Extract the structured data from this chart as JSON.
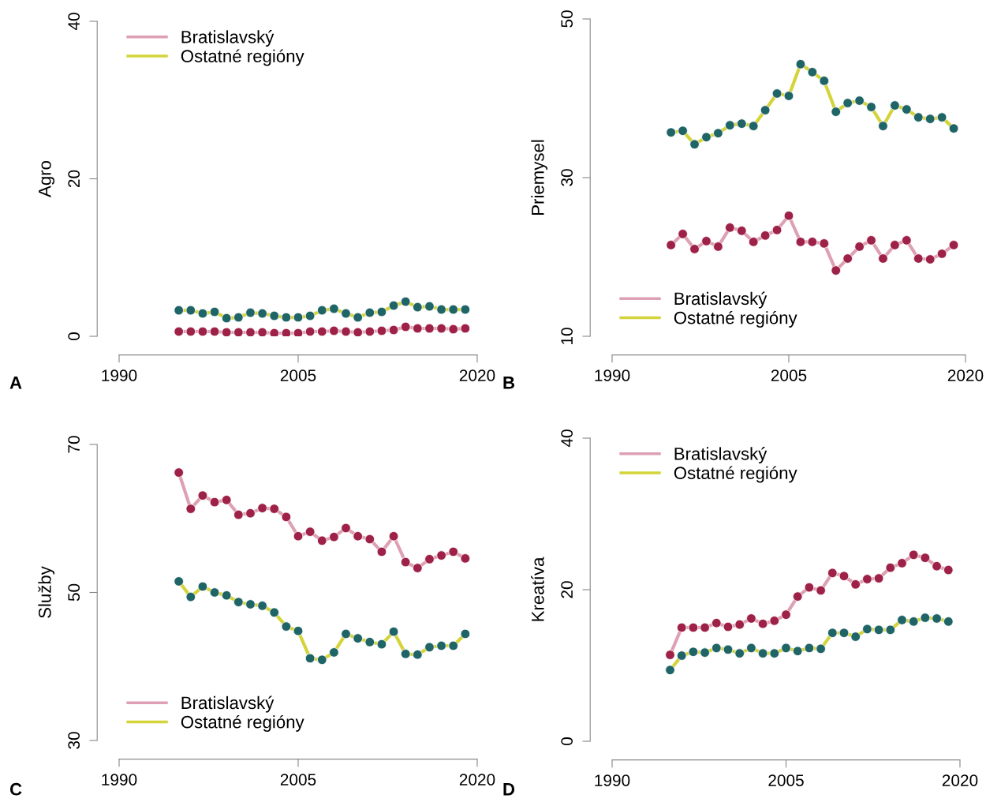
{
  "chart_data": [
    {
      "type": "line",
      "ylabel": "Agro",
      "annotations": [
        "A"
      ],
      "x": [
        1995,
        1996,
        1997,
        1998,
        1999,
        2000,
        2001,
        2002,
        2003,
        2004,
        2005,
        2006,
        2007,
        2008,
        2009,
        2010,
        2011,
        2012,
        2013,
        2014,
        2015,
        2016,
        2017,
        2018,
        2019
      ],
      "xlim": [
        1990,
        2020
      ],
      "xticks": [
        1990,
        2005,
        2020
      ],
      "ylim": [
        0,
        40
      ],
      "yticks": [
        0,
        20,
        40
      ],
      "legend": "top left",
      "marker": "circle",
      "grid": false,
      "series": [
        {
          "name": "Bratislavský",
          "color": "#dda0b4",
          "colors": [
            "#9e2148",
            "#9e2148",
            "#9e2148",
            "#9e2148",
            "#9e2148",
            "#9e2148",
            "#9e2148",
            "#9e2148",
            "#9e2148",
            "#9e2148",
            "#9e2148",
            "#9e2148",
            "#9e2148",
            "#9e2148",
            "#9e2148",
            "#9e2148",
            "#9e2148",
            "#9e2148",
            "#9e2148",
            "#9e2148",
            "#9e2148",
            "#9e2148",
            "#9e2148",
            "#9e2148",
            "#9e2148"
          ],
          "values": [
            0.6,
            0.6,
            0.6,
            0.6,
            0.5,
            0.5,
            0.5,
            0.5,
            0.4,
            0.4,
            0.4,
            0.6,
            0.6,
            0.7,
            0.6,
            0.5,
            0.6,
            0.7,
            0.8,
            1.2,
            1.0,
            1.0,
            1.0,
            0.9,
            1.0
          ]
        },
        {
          "name": "Ostatné regióny",
          "color": "#d4d43a",
          "colors": [
            "#1f6467",
            "#1f6467",
            "#1f6467",
            "#1f6467",
            "#1f6467",
            "#1f6467",
            "#1f6467",
            "#1f6467",
            "#1f6467",
            "#1f6467",
            "#1f6467",
            "#1f6467",
            "#1f6467",
            "#1f6467",
            "#1f6467",
            "#1f6467",
            "#1f6467",
            "#1f6467",
            "#1f6467",
            "#1f6467",
            "#1f6467",
            "#1f6467",
            "#1f6467",
            "#1f6467",
            "#1f6467"
          ],
          "values": [
            3.3,
            3.3,
            2.9,
            3.1,
            2.3,
            2.4,
            3.0,
            2.9,
            2.6,
            2.4,
            2.4,
            2.6,
            3.3,
            3.5,
            2.9,
            2.4,
            3.0,
            3.1,
            3.9,
            4.4,
            3.7,
            3.8,
            3.4,
            3.4,
            3.4
          ]
        }
      ]
    },
    {
      "type": "line",
      "ylabel": "Priemysel",
      "annotations": [
        "B"
      ],
      "x": [
        1995,
        1996,
        1997,
        1998,
        1999,
        2000,
        2001,
        2002,
        2003,
        2004,
        2005,
        2006,
        2007,
        2008,
        2009,
        2010,
        2011,
        2012,
        2013,
        2014,
        2015,
        2016,
        2017,
        2018,
        2019
      ],
      "xlim": [
        1990,
        2020
      ],
      "xticks": [
        1990,
        2005,
        2020
      ],
      "ylim": [
        10,
        50
      ],
      "yticks": [
        10,
        30,
        50
      ],
      "legend": "bottom left",
      "marker": "circle",
      "grid": false,
      "series": [
        {
          "name": "Bratislavský",
          "color": "#dda0b4",
          "colors": [
            "#9e2148",
            "#9e2148",
            "#9e2148",
            "#9e2148",
            "#9e2148",
            "#9e2148",
            "#9e2148",
            "#9e2148",
            "#9e2148",
            "#9e2148",
            "#9e2148",
            "#9e2148",
            "#9e2148",
            "#9e2148",
            "#9e2148",
            "#9e2148",
            "#9e2148",
            "#9e2148",
            "#9e2148",
            "#9e2148",
            "#9e2148",
            "#9e2148",
            "#9e2148",
            "#9e2148",
            "#9e2148"
          ],
          "values": [
            21.5,
            22.9,
            21.0,
            22.0,
            21.3,
            23.7,
            23.3,
            21.9,
            22.7,
            23.4,
            25.2,
            21.9,
            21.9,
            21.7,
            18.3,
            19.8,
            21.3,
            22.1,
            19.8,
            21.5,
            22.1,
            19.8,
            19.7,
            20.4,
            21.5
          ]
        },
        {
          "name": "Ostatné regióny",
          "color": "#d4d43a",
          "colors": [
            "#1f6467",
            "#1f6467",
            "#1f6467",
            "#1f6467",
            "#1f6467",
            "#1f6467",
            "#1f6467",
            "#1f6467",
            "#1f6467",
            "#1f6467",
            "#1f6467",
            "#1f6467",
            "#1f6467",
            "#1f6467",
            "#1f6467",
            "#1f6467",
            "#1f6467",
            "#1f6467",
            "#1f6467",
            "#1f6467",
            "#1f6467",
            "#1f6467",
            "#1f6467",
            "#1f6467",
            "#1f6467"
          ],
          "values": [
            35.7,
            35.9,
            34.2,
            35.1,
            35.6,
            36.6,
            36.8,
            36.5,
            38.5,
            40.6,
            40.3,
            44.3,
            43.3,
            42.2,
            38.3,
            39.4,
            39.7,
            38.9,
            36.5,
            39.1,
            38.6,
            37.6,
            37.4,
            37.6,
            36.2
          ]
        }
      ]
    },
    {
      "type": "line",
      "ylabel": "Služby",
      "annotations": [
        "C"
      ],
      "x": [
        1995,
        1996,
        1997,
        1998,
        1999,
        2000,
        2001,
        2002,
        2003,
        2004,
        2005,
        2006,
        2007,
        2008,
        2009,
        2010,
        2011,
        2012,
        2013,
        2014,
        2015,
        2016,
        2017,
        2018,
        2019
      ],
      "xlim": [
        1990,
        2020
      ],
      "xticks": [
        1990,
        2005,
        2020
      ],
      "ylim": [
        30,
        70
      ],
      "yticks": [
        30,
        50,
        70
      ],
      "legend": "bottom left",
      "marker": "circle",
      "grid": false,
      "series": [
        {
          "name": "Bratislavský",
          "color": "#dda0b4",
          "colors": [
            "#9e2148",
            "#9e2148",
            "#9e2148",
            "#9e2148",
            "#9e2148",
            "#9e2148",
            "#9e2148",
            "#9e2148",
            "#9e2148",
            "#9e2148",
            "#9e2148",
            "#9e2148",
            "#9e2148",
            "#9e2148",
            "#9e2148",
            "#9e2148",
            "#9e2148",
            "#9e2148",
            "#9e2148",
            "#9e2148",
            "#9e2148",
            "#9e2148",
            "#9e2148",
            "#9e2148",
            "#9e2148"
          ],
          "values": [
            66.2,
            61.3,
            63.1,
            62.2,
            62.5,
            60.5,
            60.7,
            61.4,
            61.3,
            60.2,
            57.6,
            58.2,
            57.0,
            57.5,
            58.7,
            57.6,
            57.2,
            55.5,
            57.6,
            54.1,
            53.3,
            54.5,
            55.0,
            55.5,
            54.6
          ]
        },
        {
          "name": "Ostatné regióny",
          "color": "#d4d43a",
          "colors": [
            "#1f6467",
            "#1f6467",
            "#1f6467",
            "#1f6467",
            "#1f6467",
            "#1f6467",
            "#1f6467",
            "#1f6467",
            "#1f6467",
            "#1f6467",
            "#1f6467",
            "#1f6467",
            "#1f6467",
            "#1f6467",
            "#1f6467",
            "#1f6467",
            "#1f6467",
            "#1f6467",
            "#1f6467",
            "#1f6467",
            "#1f6467",
            "#1f6467",
            "#1f6467",
            "#1f6467",
            "#1f6467"
          ],
          "values": [
            51.5,
            49.4,
            50.8,
            50.0,
            49.6,
            48.7,
            48.4,
            48.2,
            47.3,
            45.4,
            44.8,
            41.1,
            40.9,
            41.9,
            44.4,
            43.8,
            43.3,
            43.0,
            44.7,
            41.7,
            41.6,
            42.6,
            42.8,
            42.8,
            44.4
          ]
        }
      ]
    },
    {
      "type": "line",
      "ylabel": "Kreatíva",
      "annotations": [
        "D"
      ],
      "x": [
        1995,
        1996,
        1997,
        1998,
        1999,
        2000,
        2001,
        2002,
        2003,
        2004,
        2005,
        2006,
        2007,
        2008,
        2009,
        2010,
        2011,
        2012,
        2013,
        2014,
        2015,
        2016,
        2017,
        2018,
        2019
      ],
      "xlim": [
        1990,
        2020
      ],
      "xticks": [
        1990,
        2005,
        2020
      ],
      "ylim": [
        0,
        40
      ],
      "yticks": [
        0,
        20,
        40
      ],
      "legend": "top left",
      "marker": "circle",
      "grid": false,
      "series": [
        {
          "name": "Bratislavský",
          "color": "#dda0b4",
          "colors": [
            "#9e2148",
            "#9e2148",
            "#9e2148",
            "#9e2148",
            "#9e2148",
            "#9e2148",
            "#9e2148",
            "#9e2148",
            "#9e2148",
            "#9e2148",
            "#9e2148",
            "#9e2148",
            "#9e2148",
            "#9e2148",
            "#9e2148",
            "#9e2148",
            "#9e2148",
            "#9e2148",
            "#9e2148",
            "#9e2148",
            "#9e2148",
            "#9e2148",
            "#9e2148",
            "#9e2148",
            "#9e2148"
          ],
          "values": [
            11.4,
            15.0,
            15.0,
            15.0,
            15.6,
            15.1,
            15.4,
            16.2,
            15.5,
            15.9,
            16.7,
            19.1,
            20.3,
            19.9,
            22.2,
            21.8,
            20.7,
            21.4,
            21.5,
            22.9,
            23.5,
            24.6,
            24.2,
            23.1,
            22.6
          ]
        },
        {
          "name": "Ostatné regióny",
          "color": "#d4d43a",
          "colors": [
            "#1f6467",
            "#1f6467",
            "#1f6467",
            "#1f6467",
            "#1f6467",
            "#1f6467",
            "#1f6467",
            "#1f6467",
            "#1f6467",
            "#1f6467",
            "#1f6467",
            "#1f6467",
            "#1f6467",
            "#1f6467",
            "#1f6467",
            "#1f6467",
            "#1f6467",
            "#1f6467",
            "#1f6467",
            "#1f6467",
            "#1f6467",
            "#1f6467",
            "#1f6467",
            "#1f6467",
            "#1f6467"
          ],
          "values": [
            9.4,
            11.3,
            11.8,
            11.7,
            12.3,
            12.1,
            11.6,
            12.3,
            11.6,
            11.6,
            12.3,
            11.9,
            12.3,
            12.2,
            14.3,
            14.3,
            13.8,
            14.8,
            14.7,
            14.7,
            16.0,
            15.8,
            16.3,
            16.2,
            15.8
          ]
        }
      ]
    }
  ]
}
